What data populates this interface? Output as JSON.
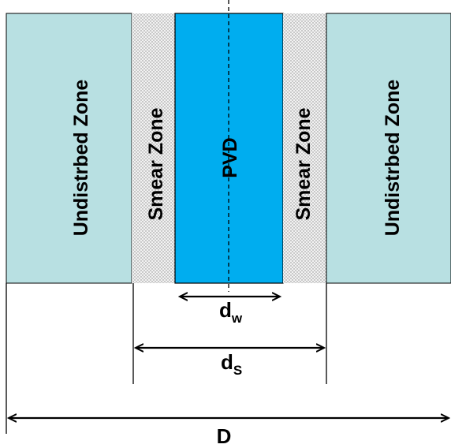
{
  "zones": {
    "left_undisturbed": "Undistrbed Zone",
    "left_smear": "Smear Zone",
    "pvd": "PVD",
    "right_smear": "Smear Zone",
    "right_undisturbed": "Undistrbed Zone"
  },
  "dimensions": {
    "dw_main": "d",
    "dw_sub": "w",
    "ds_main": "d",
    "ds_sub": "S",
    "D": "D"
  },
  "colors": {
    "undisturbed": "#b8e0e2",
    "pvd": "#00adef",
    "smear_dot": "#8a8a8a",
    "line": "#000000"
  }
}
